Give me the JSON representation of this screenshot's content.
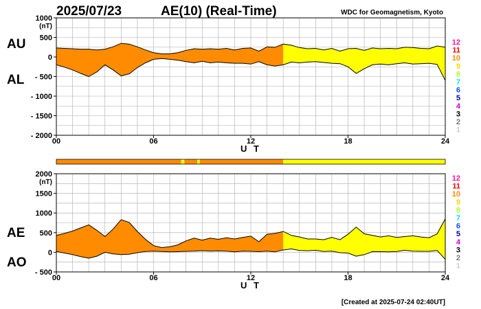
{
  "header": {
    "date": "2025/07/23",
    "title": "AE(10) (Real-Time)",
    "organization": "WDC for Geomagnetism, Kyoto"
  },
  "footer": {
    "created": "[Created at 2025-07-24 02:40UT]"
  },
  "legend": {
    "levels": [
      {
        "label": "12",
        "color": "#ff1493"
      },
      {
        "label": "11",
        "color": "#ff0000"
      },
      {
        "label": "10",
        "color": "#ff8c00"
      },
      {
        "label": "9",
        "color": "#ffd700"
      },
      {
        "label": "8",
        "color": "#adff2f"
      },
      {
        "label": "7",
        "color": "#00e5e5"
      },
      {
        "label": "6",
        "color": "#0055ff"
      },
      {
        "label": "5",
        "color": "#0000aa"
      },
      {
        "label": "4",
        "color": "#cc00cc"
      },
      {
        "label": "3",
        "color": "#000000"
      },
      {
        "label": "2",
        "color": "#777777"
      },
      {
        "label": "1",
        "color": "#cccccc"
      }
    ]
  },
  "colors": {
    "orange": "#ff8c00",
    "yellow": "#ffff00",
    "grid": "#aaaaaa"
  },
  "chart_data": [
    {
      "type": "area",
      "panel": "AU/AL",
      "series_labels": [
        "AU",
        "AL"
      ],
      "unit": "(nT)",
      "xlabel": "U T",
      "xlim": [
        0,
        24
      ],
      "ylim": [
        -2000,
        1000
      ],
      "xticks": [
        0,
        6,
        12,
        18,
        24
      ],
      "xtick_labels": [
        "00",
        "06",
        "12",
        "18",
        "24"
      ],
      "yticks": [
        1000,
        500,
        0,
        -500,
        -1000,
        -1500,
        -2000
      ],
      "ytick_labels": [
        "1000",
        "500",
        "0",
        "- 500",
        "- 1000",
        "- 1500",
        "- 2000"
      ],
      "x": [
        0,
        0.5,
        1,
        1.5,
        2,
        2.5,
        3,
        3.5,
        4,
        4.5,
        5,
        5.5,
        6,
        6.5,
        7,
        7.5,
        8,
        8.5,
        9,
        9.5,
        10,
        10.5,
        11,
        11.5,
        12,
        12.5,
        13,
        13.5,
        14,
        14.5,
        15,
        15.5,
        16,
        16.5,
        17,
        17.5,
        18,
        18.5,
        19,
        19.5,
        20,
        20.5,
        21,
        21.5,
        22,
        22.5,
        23,
        23.5,
        24
      ],
      "upper": [
        230,
        220,
        210,
        200,
        200,
        180,
        200,
        260,
        350,
        330,
        260,
        180,
        110,
        80,
        80,
        110,
        170,
        210,
        200,
        210,
        200,
        220,
        180,
        220,
        230,
        150,
        260,
        250,
        330,
        300,
        240,
        210,
        220,
        180,
        220,
        150,
        210,
        220,
        170,
        230,
        210,
        220,
        210,
        250,
        240,
        220,
        210,
        280,
        250
      ],
      "lower": [
        -200,
        -260,
        -330,
        -420,
        -500,
        -380,
        -200,
        -330,
        -480,
        -430,
        -270,
        -150,
        -60,
        -40,
        -60,
        -80,
        -120,
        -150,
        -110,
        -150,
        -130,
        -150,
        -160,
        -160,
        -180,
        -120,
        -200,
        -230,
        -200,
        -130,
        -150,
        -130,
        -120,
        -140,
        -160,
        -170,
        -250,
        -420,
        -300,
        -200,
        -180,
        -200,
        -170,
        -150,
        -180,
        -170,
        -160,
        -190,
        -600
      ]
    },
    {
      "type": "area",
      "panel": "AE/AO",
      "series_labels": [
        "AE",
        "AO"
      ],
      "unit": "(nT)",
      "xlabel": "U T",
      "xlim": [
        0,
        24
      ],
      "ylim": [
        -500,
        2000
      ],
      "xticks": [
        0,
        6,
        12,
        18,
        24
      ],
      "xtick_labels": [
        "00",
        "06",
        "12",
        "18",
        "24"
      ],
      "yticks": [
        2000,
        1500,
        1000,
        500,
        0,
        -500
      ],
      "ytick_labels": [
        "2000",
        "1500",
        "1000",
        "500",
        "0",
        "- 500"
      ],
      "x": [
        0,
        0.5,
        1,
        1.5,
        2,
        2.5,
        3,
        3.5,
        4,
        4.5,
        5,
        5.5,
        6,
        6.5,
        7,
        7.5,
        8,
        8.5,
        9,
        9.5,
        10,
        10.5,
        11,
        11.5,
        12,
        12.5,
        13,
        13.5,
        14,
        14.5,
        15,
        15.5,
        16,
        16.5,
        17,
        17.5,
        18,
        18.5,
        19,
        19.5,
        20,
        20.5,
        21,
        21.5,
        22,
        22.5,
        23,
        23.5,
        24
      ],
      "upper": [
        430,
        480,
        540,
        620,
        700,
        560,
        400,
        590,
        830,
        760,
        530,
        330,
        170,
        120,
        140,
        190,
        290,
        360,
        310,
        360,
        330,
        370,
        340,
        380,
        410,
        270,
        460,
        480,
        530,
        430,
        390,
        340,
        340,
        320,
        380,
        320,
        460,
        640,
        470,
        430,
        390,
        420,
        380,
        400,
        420,
        390,
        370,
        470,
        850
      ],
      "lower": [
        20,
        -20,
        -60,
        -110,
        -150,
        -100,
        0,
        -40,
        -60,
        -50,
        -10,
        20,
        30,
        20,
        10,
        15,
        25,
        30,
        40,
        30,
        35,
        30,
        10,
        30,
        25,
        15,
        30,
        10,
        60,
        85,
        45,
        40,
        50,
        20,
        30,
        -10,
        -20,
        -100,
        -60,
        15,
        15,
        10,
        20,
        50,
        30,
        25,
        25,
        45,
        -180
      ]
    }
  ],
  "condition_bar": {
    "xlim": [
      0,
      24
    ],
    "segments": [
      {
        "start": 0,
        "end": 7.7,
        "color": "#ff8c00"
      },
      {
        "start": 7.7,
        "end": 7.9,
        "color": "#ffff00"
      },
      {
        "start": 7.9,
        "end": 8.7,
        "color": "#ff8c00"
      },
      {
        "start": 8.7,
        "end": 8.85,
        "color": "#ffff00"
      },
      {
        "start": 8.85,
        "end": 14.0,
        "color": "#ff8c00"
      },
      {
        "start": 14.0,
        "end": 24,
        "color": "#ffff00"
      }
    ]
  }
}
